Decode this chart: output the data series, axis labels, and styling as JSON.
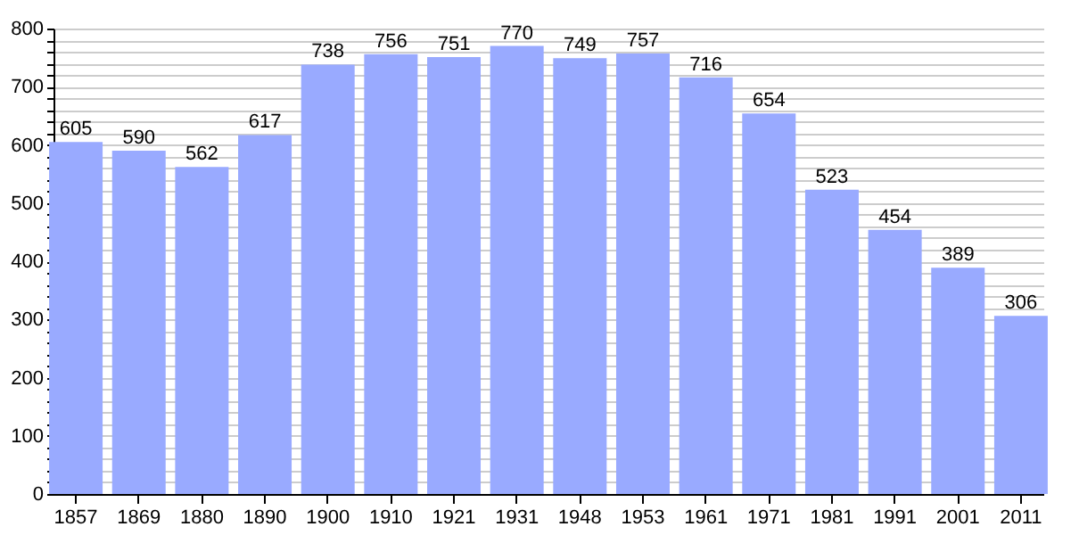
{
  "chart_data": {
    "type": "bar",
    "categories": [
      "1857",
      "1869",
      "1880",
      "1890",
      "1900",
      "1910",
      "1921",
      "1931",
      "1948",
      "1953",
      "1961",
      "1971",
      "1981",
      "1991",
      "2001",
      "2011"
    ],
    "values": [
      605,
      590,
      562,
      617,
      738,
      756,
      751,
      770,
      749,
      757,
      716,
      654,
      523,
      454,
      389,
      306
    ],
    "color": "#99aaff",
    "ylim": [
      0,
      800
    ],
    "yticks": [
      0,
      {
        "value": 20,
        "label": null
      },
      {
        "value": 40,
        "label": null
      },
      {
        "value": 60,
        "label": null
      },
      {
        "value": 80,
        "label": null
      },
      100,
      {
        "value": 120,
        "label": null
      },
      {
        "value": 140,
        "label": null
      },
      {
        "value": 160,
        "label": null
      },
      {
        "value": 180,
        "label": null
      },
      200,
      {
        "value": 220,
        "label": null
      },
      {
        "value": 240,
        "label": null
      },
      {
        "value": 260,
        "label": null
      },
      {
        "value": 280,
        "label": null
      },
      300,
      {
        "value": 320,
        "label": null
      },
      {
        "value": 340,
        "label": null
      },
      {
        "value": 360,
        "label": null
      },
      {
        "value": 380,
        "label": null
      },
      400,
      {
        "value": 420,
        "label": null
      },
      {
        "value": 440,
        "label": null
      },
      {
        "value": 460,
        "label": null
      },
      {
        "value": 480,
        "label": null
      },
      500,
      {
        "value": 520,
        "label": null
      },
      {
        "value": 540,
        "label": null
      },
      {
        "value": 560,
        "label": null
      },
      {
        "value": 580,
        "label": null
      },
      600,
      {
        "value": 620,
        "label": null
      },
      {
        "value": 640,
        "label": null
      },
      {
        "value": 660,
        "label": null
      },
      {
        "value": 680,
        "label": null
      },
      700,
      {
        "value": 720,
        "label": null
      },
      {
        "value": 740,
        "label": null
      },
      {
        "value": 760,
        "label": null
      },
      {
        "value": 780,
        "label": null
      },
      800
    ],
    "grid": "y",
    "data_labels": true
  }
}
